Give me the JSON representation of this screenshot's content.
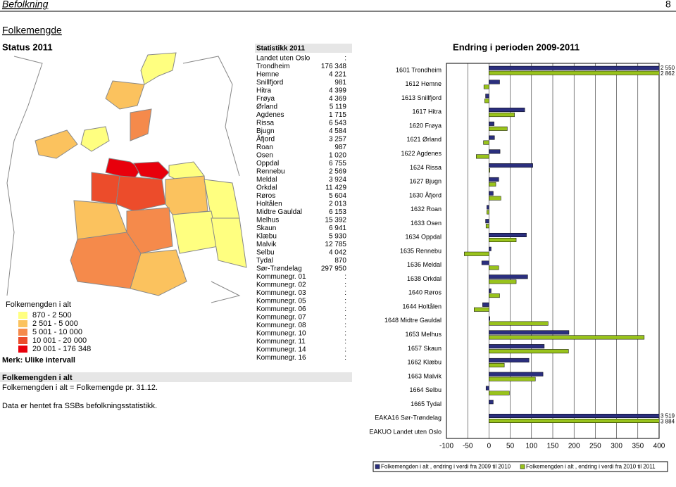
{
  "header": {
    "section": "Befolkning",
    "page": "8"
  },
  "title": "Folkemengde",
  "status_heading": "Status 2011",
  "map_legend": {
    "title": "Folkemengden i alt",
    "classes": [
      {
        "label": "870 - 2 500",
        "color": "#ffff80"
      },
      {
        "label": "2 501 - 5 000",
        "color": "#fbc25e"
      },
      {
        "label": "5 001 - 10 000",
        "color": "#f58a4b"
      },
      {
        "label": "10 001 - 20 000",
        "color": "#ec4c2b"
      },
      {
        "label": "20 001 - 176 348",
        "color": "#e8000c"
      }
    ],
    "note": "Merk: Ulike intervall"
  },
  "table": {
    "title": "Statistikk 2011",
    "rows": [
      [
        "Landet uten Oslo",
        ":"
      ],
      [
        "Trondheim",
        "176 348"
      ],
      [
        "Hemne",
        "4 221"
      ],
      [
        "Snillfjord",
        "981"
      ],
      [
        "Hitra",
        "4 399"
      ],
      [
        "Frøya",
        "4 369"
      ],
      [
        "Ørland",
        "5 119"
      ],
      [
        "Agdenes",
        "1 715"
      ],
      [
        "Rissa",
        "6 543"
      ],
      [
        "Bjugn",
        "4 584"
      ],
      [
        "Åfjord",
        "3 257"
      ],
      [
        "Roan",
        "987"
      ],
      [
        "Osen",
        "1 020"
      ],
      [
        "Oppdal",
        "6 755"
      ],
      [
        "Rennebu",
        "2 569"
      ],
      [
        "Meldal",
        "3 924"
      ],
      [
        "Orkdal",
        "11 429"
      ],
      [
        "Røros",
        "5 604"
      ],
      [
        "Holtålen",
        "2 013"
      ],
      [
        "Midtre Gauldal",
        "6 153"
      ],
      [
        "Melhus",
        "15 392"
      ],
      [
        "Skaun",
        "6 941"
      ],
      [
        "Klæbu",
        "5 930"
      ],
      [
        "Malvik",
        "12 785"
      ],
      [
        "Selbu",
        "4 042"
      ],
      [
        "Tydal",
        "870"
      ],
      [
        "Sør-Trøndelag",
        "297 950"
      ],
      [
        "Kommunegr. 01",
        ":"
      ],
      [
        "Kommunegr. 02",
        ":"
      ],
      [
        "Kommunegr. 03",
        ":"
      ],
      [
        "Kommunegr. 05",
        ":"
      ],
      [
        "Kommunegr. 06",
        ":"
      ],
      [
        "Kommunegr. 07",
        ":"
      ],
      [
        "Kommunegr. 08",
        ":"
      ],
      [
        "Kommunegr. 10",
        ":"
      ],
      [
        "Kommunegr. 11",
        ":"
      ],
      [
        "Kommunegr. 14",
        ":"
      ],
      [
        "Kommunegr. 16",
        ":"
      ]
    ]
  },
  "notes": {
    "heading": "Folkemengden i alt",
    "definition": "Folkemengden i alt = Folkemengde pr. 31.12.",
    "source": "Data er hentet fra SSBs befolkningsstatistikk."
  },
  "chart_data": {
    "type": "hbar",
    "title": "Endring i perioden 2009-2011",
    "categories": [
      "1601 Trondheim",
      "1612 Hemne",
      "1613 Snillfjord",
      "1617 Hitra",
      "1620 Frøya",
      "1621 Ørland",
      "1622 Agdenes",
      "1624 Rissa",
      "1627 Bjugn",
      "1630 Åfjord",
      "1632 Roan",
      "1633 Osen",
      "1634 Oppdal",
      "1635 Rennebu",
      "1636 Meldal",
      "1638 Orkdal",
      "1640 Røros",
      "1644 Holtålen",
      "1648 Midtre Gauldal",
      "1653 Melhus",
      "1657 Skaun",
      "1662 Klæbu",
      "1663 Malvik",
      "1664 Selbu",
      "1665 Tydal",
      "EAKA16 Sør-Trøndelag",
      "EAKUO Landet uten Oslo"
    ],
    "series": [
      {
        "name": "Folkemengden i alt , endring i verdi fra 2009 til 2010",
        "color": "#2b2f7e",
        "values": [
          2550,
          25,
          -8,
          84,
          12,
          13,
          26,
          103,
          23,
          10,
          -5,
          -8,
          88,
          5,
          -17,
          91,
          5,
          -15,
          2,
          188,
          130,
          94,
          127,
          -7,
          10,
          3519,
          null
        ],
        "value_labels": [
          "2 550",
          null,
          null,
          null,
          null,
          null,
          null,
          null,
          null,
          null,
          null,
          null,
          null,
          null,
          null,
          null,
          null,
          null,
          null,
          null,
          null,
          null,
          null,
          null,
          null,
          "3 519",
          null
        ]
      },
      {
        "name": "Folkemengden i alt , endring i verdi fra 2010 til 2011",
        "color": "#99c31c",
        "values": [
          2862,
          -12,
          -10,
          60,
          43,
          -13,
          -30,
          2,
          16,
          28,
          -5,
          -7,
          64,
          -58,
          23,
          64,
          25,
          -35,
          139,
          365,
          187,
          36,
          109,
          48,
          0,
          3884,
          null
        ],
        "value_labels": [
          "2 862",
          null,
          null,
          null,
          null,
          null,
          null,
          null,
          null,
          null,
          null,
          null,
          null,
          null,
          null,
          null,
          null,
          null,
          null,
          null,
          null,
          null,
          null,
          null,
          null,
          "3 884",
          null
        ]
      }
    ],
    "xlim": [
      -100,
      400
    ],
    "xticks": [
      -100,
      -50,
      0,
      50,
      100,
      150,
      200,
      250,
      300,
      350,
      400
    ],
    "grid": true
  }
}
